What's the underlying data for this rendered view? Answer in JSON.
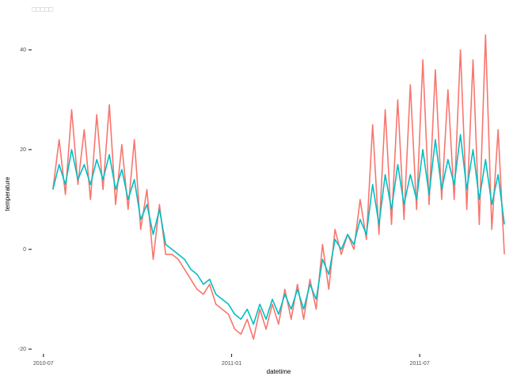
{
  "chart_data": {
    "type": "line",
    "title": "□□□□□",
    "x_label": "datetime",
    "y_label": "temperature",
    "x": [
      0.3,
      0.5,
      0.7,
      0.9,
      1.1,
      1.3,
      1.5,
      1.7,
      1.9,
      2.1,
      2.3,
      2.5,
      2.7,
      2.9,
      3.1,
      3.3,
      3.5,
      3.7,
      3.9,
      4.1,
      4.3,
      4.5,
      4.7,
      4.9,
      5.1,
      5.3,
      5.5,
      5.7,
      5.9,
      6.1,
      6.3,
      6.5,
      6.7,
      6.9,
      7.1,
      7.3,
      7.5,
      7.7,
      7.9,
      8.1,
      8.3,
      8.5,
      8.7,
      8.9,
      9.1,
      9.3,
      9.5,
      9.7,
      9.9,
      10.1,
      10.3,
      10.5,
      10.7,
      10.9,
      11.1,
      11.3,
      11.5,
      11.7,
      11.9,
      12.1,
      12.3,
      12.5,
      12.7,
      12.9,
      13.1,
      13.3,
      13.5,
      13.7,
      13.9,
      14.1,
      14.3,
      14.5,
      14.7
    ],
    "series": [
      {
        "color": "#F8766D",
        "values": [
          12,
          22,
          11,
          28,
          13,
          24,
          10,
          27,
          12,
          29,
          9,
          21,
          8,
          22,
          4,
          12,
          -2,
          9,
          -1,
          -1,
          -2,
          -4,
          -6,
          -8,
          -9,
          -7,
          -11,
          -12,
          -13,
          -16,
          -17,
          -14,
          -18,
          -12,
          -16,
          -11,
          -15,
          -8,
          -14,
          -7,
          -14,
          -6,
          -12,
          1,
          -8,
          4,
          -1,
          3,
          0,
          10,
          2,
          25,
          3,
          28,
          5,
          30,
          6,
          33,
          8,
          38,
          9,
          36,
          10,
          32,
          10,
          40,
          8,
          38,
          5,
          43,
          4,
          24,
          -1
        ]
      },
      {
        "color": "#00BFC4",
        "values": [
          12,
          17,
          13,
          20,
          14,
          17,
          13,
          18,
          14,
          19,
          12,
          16,
          10,
          14,
          6,
          9,
          3,
          8,
          1,
          0,
          -1,
          -2,
          -4,
          -5,
          -7,
          -6,
          -9,
          -10,
          -11,
          -13,
          -14,
          -12,
          -15,
          -11,
          -14,
          -10,
          -13,
          -9,
          -12,
          -8,
          -12,
          -7,
          -10,
          -2,
          -5,
          2,
          0,
          3,
          1,
          6,
          3,
          13,
          5,
          15,
          8,
          17,
          9,
          15,
          10,
          20,
          11,
          22,
          12,
          18,
          13,
          23,
          12,
          20,
          10,
          18,
          9,
          15,
          5
        ]
      }
    ],
    "xlim": [
      -0.3,
      14.9
    ],
    "xticks": [
      {
        "value": 0,
        "label": "2010-07"
      },
      {
        "value": 6,
        "label": "2011-01"
      },
      {
        "value": 12,
        "label": "2011-07"
      }
    ],
    "ylim": [
      -21.5,
      44.5
    ],
    "yticks": [
      -20,
      0,
      20,
      40
    ]
  }
}
